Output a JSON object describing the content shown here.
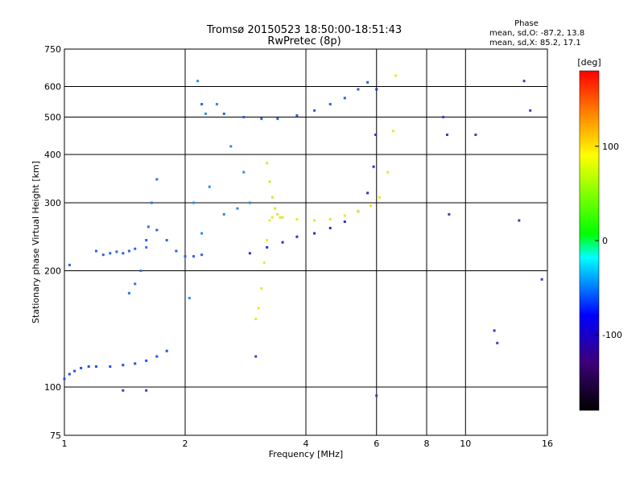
{
  "header": {
    "title_line1": "Tromsø 20150523 18:50:00-18:51:43",
    "title_line2": "RwPretec (8p)"
  },
  "phase_stats": {
    "heading": "Phase",
    "line1": "mean, sd,O: -87.2, 13.8",
    "line2": "mean, sd,X:  85.2, 17.1"
  },
  "chart_data": {
    "type": "scatter",
    "title": "Tromsø 20150523 18:50:00-18:51:43",
    "subtitle": "RwPretec (8p)",
    "xlabel": "Frequency [MHz]",
    "ylabel": "Stationary phase Virtual Height [km]",
    "xscale": "log",
    "yscale": "log",
    "xlim": [
      1,
      16
    ],
    "ylim": [
      75,
      750
    ],
    "x_ticks": [
      1,
      2,
      4,
      6,
      8,
      10,
      16
    ],
    "y_ticks": [
      75,
      100,
      200,
      300,
      400,
      500,
      600,
      750
    ],
    "grid": true,
    "colorbar": {
      "label": "[deg]",
      "range": [
        -180,
        180
      ],
      "ticks": [
        100,
        0,
        -100
      ],
      "colors": [
        "#000000",
        "#3c0078",
        "#0000ff",
        "#00ffff",
        "#00ff00",
        "#ffff00",
        "#ff8800",
        "#ff0000"
      ]
    },
    "series": [
      {
        "trace": "O-mode low band (E layer)",
        "color": "#1e50e6",
        "phase_deg": -100,
        "x": [
          1.0,
          1.03,
          1.06,
          1.1,
          1.15,
          1.2,
          1.3,
          1.4,
          1.5,
          1.6,
          1.7,
          1.8
        ],
        "y": [
          105,
          108,
          110,
          112,
          113,
          113,
          113,
          114,
          115,
          117,
          120,
          124
        ]
      },
      {
        "trace": "O-mode F1 cusp",
        "color": "#2864e6",
        "phase_deg": -95,
        "x": [
          1.03,
          1.2,
          1.25,
          1.3,
          1.35,
          1.4,
          1.45,
          1.5,
          1.6,
          1.7,
          1.8,
          1.9,
          2.0,
          2.1,
          2.2
        ],
        "y": [
          207,
          225,
          220,
          222,
          224,
          222,
          225,
          228,
          240,
          255,
          240,
          225,
          218,
          218,
          220
        ]
      },
      {
        "trace": "O-mode F1 vertical spread",
        "color": "#2a78e6",
        "phase_deg": -90,
        "x": [
          1.45,
          1.5,
          1.55,
          1.6,
          1.62,
          1.65,
          1.7
        ],
        "y": [
          175,
          185,
          200,
          230,
          260,
          300,
          345
        ]
      },
      {
        "trace": "O-mode F2 trace",
        "color": "#2a30d0",
        "phase_deg": -105,
        "x": [
          2.9,
          3.2,
          3.5,
          3.8,
          4.2,
          4.6,
          5.0,
          5.4,
          5.7,
          5.9,
          5.97,
          6.0
        ],
        "y": [
          222,
          230,
          237,
          245,
          250,
          258,
          268,
          285,
          318,
          372,
          450,
          590
        ]
      },
      {
        "trace": "Spread F column near 2.1-2.9 MHz",
        "color": "#2c8ce8",
        "phase_deg": -80,
        "x": [
          2.05,
          2.1,
          2.15,
          2.2,
          2.25,
          2.3,
          2.4,
          2.5,
          2.6,
          2.7,
          2.8,
          2.9
        ],
        "y": [
          170,
          300,
          620,
          250,
          510,
          330,
          540,
          280,
          420,
          290,
          360,
          300
        ]
      },
      {
        "trace": "Upper spread trace 500-640 km",
        "color": "#2a60d8",
        "phase_deg": -95,
        "x": [
          2.2,
          2.5,
          2.8,
          3.1,
          3.4,
          3.8,
          4.2,
          4.6,
          5.0,
          5.4,
          5.7
        ],
        "y": [
          540,
          510,
          500,
          495,
          495,
          505,
          520,
          540,
          560,
          590,
          615
        ]
      },
      {
        "trace": "X-mode lower trace",
        "color": "#ecec2a",
        "phase_deg": 85,
        "x": [
          3.0,
          3.05,
          3.1,
          3.15,
          3.2,
          3.25
        ],
        "y": [
          150,
          160,
          180,
          210,
          240,
          270
        ]
      },
      {
        "trace": "X-mode F2 trace",
        "color": "#e8e828",
        "phase_deg": 90,
        "x": [
          3.3,
          3.5,
          3.8,
          4.2,
          4.6,
          5.0,
          5.4,
          5.8,
          6.1,
          6.4,
          6.6,
          6.7
        ],
        "y": [
          275,
          275,
          272,
          270,
          272,
          278,
          285,
          295,
          310,
          360,
          460,
          640
        ]
      },
      {
        "trace": "X-mode inverse cusp",
        "color": "#e0e032",
        "phase_deg": 95,
        "x": [
          3.2,
          3.25,
          3.3,
          3.35,
          3.4,
          3.45
        ],
        "y": [
          380,
          340,
          310,
          290,
          280,
          275
        ]
      },
      {
        "trace": "Isolated echoes",
        "color": "#3c3cc8",
        "phase_deg": -110,
        "x": [
          1.4,
          1.6,
          3.0,
          6.0,
          8.8,
          9.0,
          9.1,
          10.6,
          11.8,
          12.0,
          13.6,
          14.0,
          14.5,
          15.5
        ],
        "y": [
          98,
          98,
          120,
          95,
          500,
          450,
          280,
          450,
          140,
          130,
          270,
          620,
          520,
          190
        ]
      }
    ]
  }
}
